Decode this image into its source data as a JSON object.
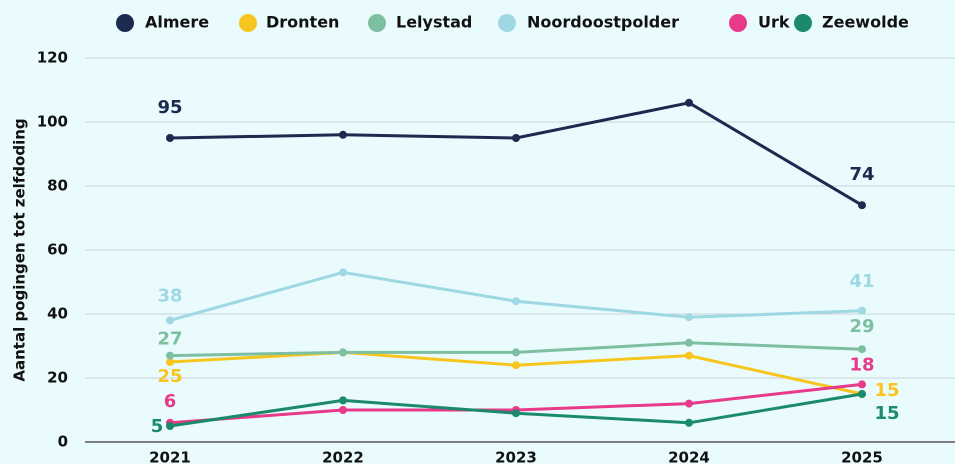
{
  "chart_data": {
    "type": "line",
    "y_label": "Aantal pogingen tot zelfdoding",
    "x": [
      "2021",
      "2022",
      "2023",
      "2024",
      "2025"
    ],
    "series": [
      {
        "name": "Almere",
        "color": "#1b2a4e",
        "values": [
          95,
          96,
          95,
          106,
          74
        ]
      },
      {
        "name": "Dronten",
        "color": "#f7c51e",
        "values": [
          25,
          28,
          24,
          27,
          15
        ]
      },
      {
        "name": "Lelystad",
        "color": "#7dbfa0",
        "values": [
          27,
          28,
          28,
          31,
          29
        ]
      },
      {
        "name": "Noordoostpolder",
        "color": "#9ed8e2",
        "values": [
          38,
          53,
          44,
          39,
          41
        ]
      },
      {
        "name": "Urk",
        "color": "#e8398a",
        "values": [
          6,
          10,
          10,
          12,
          18
        ]
      },
      {
        "name": "Zeewolde",
        "color": "#1a8a6a",
        "values": [
          5,
          13,
          9,
          6,
          15
        ]
      }
    ],
    "ylim": [
      0,
      120
    ],
    "yticks": [
      0,
      20,
      40,
      60,
      80,
      100,
      120
    ],
    "grid": true,
    "legend": "top",
    "data_labels": "ends"
  }
}
